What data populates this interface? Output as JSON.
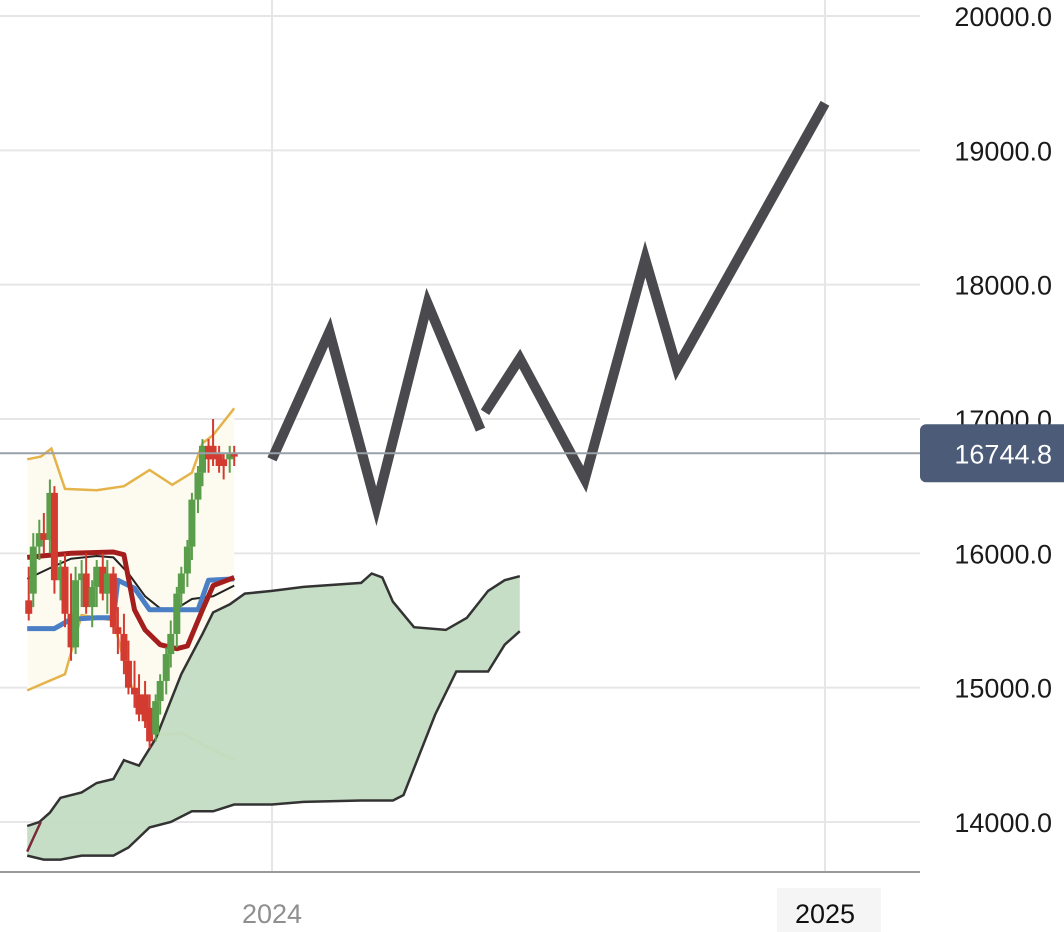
{
  "chart_data": {
    "type": "line",
    "title": "",
    "xlabel": "",
    "ylabel": "",
    "x_ticks": [
      {
        "label": "2024",
        "value": "2024-01-01",
        "emphasis": false
      },
      {
        "label": "2025",
        "value": "2025-01-01",
        "emphasis": true
      }
    ],
    "y_ticks": [
      "14000.0",
      "15000.0",
      "16000.0",
      "17000.0",
      "18000.0",
      "19000.0",
      "20000.0"
    ],
    "ylim": [
      13620,
      20120
    ],
    "xlim": [
      "2023-07-23",
      "2025-03-31"
    ],
    "grid": true,
    "last_price": {
      "label": "16744.8",
      "value": 16744.8
    },
    "colors": {
      "projection": "#4a4a4e",
      "up_candle": "#5a9e4b",
      "down_candle": "#d33a30",
      "bollinger": "#e4b34a",
      "bollinger_fill": "#fdfbf0",
      "base_line": "#a51e1e",
      "conversion_line": "#4a7fc6",
      "sma": "#222222",
      "cloud_fill": "#c4dcc3",
      "cloud_edge": "#333333",
      "price_tag": "#4c5b78",
      "grid": "#e6e6e6"
    },
    "projection_segments": [
      [
        [
          "2024-01-01",
          16700
        ],
        [
          "2024-02-08",
          17650
        ],
        [
          "2024-03-10",
          16350
        ],
        [
          "2024-04-13",
          17860
        ],
        [
          "2024-05-18",
          16920
        ]
      ],
      [
        [
          "2024-05-21",
          17050
        ],
        [
          "2024-06-13",
          17450
        ],
        [
          "2024-07-26",
          16550
        ],
        [
          "2024-09-04",
          18190
        ],
        [
          "2024-09-25",
          17380
        ],
        [
          "2025-01-01",
          19350
        ]
      ]
    ],
    "candles": [
      {
        "date": "2023-07-24",
        "open": 15650,
        "high": 15900,
        "low": 15500,
        "close": 15550
      },
      {
        "date": "2023-07-27",
        "open": 15700,
        "high": 16150,
        "low": 15600,
        "close": 16050
      },
      {
        "date": "2023-07-31",
        "open": 16050,
        "high": 16250,
        "low": 15950,
        "close": 16150
      },
      {
        "date": "2023-08-03",
        "open": 16150,
        "high": 16300,
        "low": 16000,
        "close": 16100
      },
      {
        "date": "2023-08-07",
        "open": 16100,
        "high": 16550,
        "low": 16000,
        "close": 16450
      },
      {
        "date": "2023-08-10",
        "open": 16450,
        "high": 16500,
        "low": 15700,
        "close": 15800
      },
      {
        "date": "2023-08-14",
        "open": 15800,
        "high": 15950,
        "low": 15650,
        "close": 15900
      },
      {
        "date": "2023-08-17",
        "open": 15900,
        "high": 16000,
        "low": 15450,
        "close": 15550
      },
      {
        "date": "2023-08-21",
        "open": 15550,
        "high": 15850,
        "low": 15200,
        "close": 15300
      },
      {
        "date": "2023-08-24",
        "open": 15300,
        "high": 15900,
        "low": 15250,
        "close": 15800
      },
      {
        "date": "2023-08-28",
        "open": 15800,
        "high": 15950,
        "low": 15600,
        "close": 15850
      },
      {
        "date": "2023-08-31",
        "open": 15850,
        "high": 16000,
        "low": 15550,
        "close": 15600
      },
      {
        "date": "2023-09-04",
        "open": 15600,
        "high": 15800,
        "low": 15450,
        "close": 15750
      },
      {
        "date": "2023-09-07",
        "open": 15750,
        "high": 15950,
        "low": 15600,
        "close": 15900
      },
      {
        "date": "2023-09-11",
        "open": 15900,
        "high": 16000,
        "low": 15650,
        "close": 15700
      },
      {
        "date": "2023-09-14",
        "open": 15700,
        "high": 15950,
        "low": 15550,
        "close": 15850
      },
      {
        "date": "2023-09-18",
        "open": 15850,
        "high": 15900,
        "low": 15400,
        "close": 15450
      },
      {
        "date": "2023-09-21",
        "open": 15450,
        "high": 15600,
        "low": 15250,
        "close": 15400
      },
      {
        "date": "2023-09-25",
        "open": 15400,
        "high": 15550,
        "low": 15100,
        "close": 15200
      },
      {
        "date": "2023-09-28",
        "open": 15200,
        "high": 15350,
        "low": 14950,
        "close": 15000
      },
      {
        "date": "2023-10-02",
        "open": 15000,
        "high": 15200,
        "low": 14850,
        "close": 14950
      },
      {
        "date": "2023-10-05",
        "open": 14950,
        "high": 15100,
        "low": 14750,
        "close": 14800
      },
      {
        "date": "2023-10-09",
        "open": 14950,
        "high": 15050,
        "low": 14700,
        "close": 14750
      },
      {
        "date": "2023-10-12",
        "open": 14850,
        "high": 14950,
        "low": 14550,
        "close": 14600
      },
      {
        "date": "2023-10-16",
        "open": 14650,
        "high": 14950,
        "low": 14600,
        "close": 14900
      },
      {
        "date": "2023-10-19",
        "open": 14900,
        "high": 15100,
        "low": 14800,
        "close": 15050
      },
      {
        "date": "2023-10-23",
        "open": 15050,
        "high": 15300,
        "low": 14950,
        "close": 15250
      },
      {
        "date": "2023-10-26",
        "open": 15250,
        "high": 15500,
        "low": 15150,
        "close": 15400
      },
      {
        "date": "2023-10-30",
        "open": 15400,
        "high": 15750,
        "low": 15300,
        "close": 15700
      },
      {
        "date": "2023-11-02",
        "open": 15700,
        "high": 15900,
        "low": 15600,
        "close": 15850
      },
      {
        "date": "2023-11-06",
        "open": 15850,
        "high": 16100,
        "low": 15750,
        "close": 16050
      },
      {
        "date": "2023-11-09",
        "open": 16050,
        "high": 16450,
        "low": 15950,
        "close": 16400
      },
      {
        "date": "2023-11-13",
        "open": 16400,
        "high": 16650,
        "low": 16300,
        "close": 16600
      },
      {
        "date": "2023-11-16",
        "open": 16600,
        "high": 16850,
        "low": 16500,
        "close": 16800
      },
      {
        "date": "2023-11-20",
        "open": 16800,
        "high": 16850,
        "low": 16600,
        "close": 16700
      },
      {
        "date": "2023-11-23",
        "open": 16800,
        "high": 17000,
        "low": 16650,
        "close": 16700
      },
      {
        "date": "2023-11-27",
        "open": 16750,
        "high": 16800,
        "low": 16600,
        "close": 16650
      },
      {
        "date": "2023-11-30",
        "open": 16700,
        "high": 16750,
        "low": 16550,
        "close": 16650
      },
      {
        "date": "2023-12-04",
        "open": 16700,
        "high": 16800,
        "low": 16600,
        "close": 16750
      },
      {
        "date": "2023-12-07",
        "open": 16750,
        "high": 16800,
        "low": 16650,
        "close": 16720
      }
    ],
    "bollinger_upper": [
      [
        "2023-07-23",
        16700
      ],
      [
        "2023-08-01",
        16720
      ],
      [
        "2023-08-08",
        16780
      ],
      [
        "2023-08-17",
        16480
      ],
      [
        "2023-09-07",
        16470
      ],
      [
        "2023-09-25",
        16500
      ],
      [
        "2023-10-12",
        16620
      ],
      [
        "2023-10-27",
        16510
      ],
      [
        "2023-11-09",
        16600
      ],
      [
        "2023-11-16",
        16820
      ],
      [
        "2023-11-23",
        16880
      ],
      [
        "2023-12-07",
        17080
      ]
    ],
    "bollinger_lower": [
      [
        "2023-07-23",
        14980
      ],
      [
        "2023-08-17",
        15100
      ],
      [
        "2023-08-28",
        15540
      ],
      [
        "2023-09-07",
        15520
      ],
      [
        "2023-09-18",
        15500
      ],
      [
        "2023-09-28",
        15070
      ],
      [
        "2023-10-09",
        14750
      ],
      [
        "2023-10-19",
        14650
      ],
      [
        "2023-11-02",
        14660
      ],
      [
        "2023-11-16",
        14580
      ],
      [
        "2023-12-07",
        14460
      ]
    ],
    "base_line": [
      [
        "2023-07-23",
        15970
      ],
      [
        "2023-08-10",
        15990
      ],
      [
        "2023-08-21",
        16000
      ],
      [
        "2023-09-18",
        16010
      ],
      [
        "2023-09-25",
        15990
      ],
      [
        "2023-10-02",
        15580
      ],
      [
        "2023-10-09",
        15430
      ],
      [
        "2023-10-19",
        15320
      ],
      [
        "2023-10-30",
        15290
      ],
      [
        "2023-11-06",
        15310
      ],
      [
        "2023-11-16",
        15580
      ],
      [
        "2023-11-23",
        15760
      ],
      [
        "2023-12-07",
        15820
      ]
    ],
    "conversion_line": [
      [
        "2023-07-23",
        15440
      ],
      [
        "2023-08-10",
        15440
      ],
      [
        "2023-08-21",
        15510
      ],
      [
        "2023-09-07",
        15520
      ],
      [
        "2023-09-18",
        15520
      ],
      [
        "2023-09-21",
        15800
      ],
      [
        "2023-10-02",
        15740
      ],
      [
        "2023-10-12",
        15580
      ],
      [
        "2023-11-13",
        15580
      ],
      [
        "2023-11-20",
        15800
      ],
      [
        "2023-12-07",
        15810
      ]
    ],
    "sma": [
      [
        "2023-07-23",
        15810
      ],
      [
        "2023-08-07",
        15890
      ],
      [
        "2023-08-21",
        15960
      ],
      [
        "2023-09-07",
        15980
      ],
      [
        "2023-09-18",
        15970
      ],
      [
        "2023-09-28",
        15850
      ],
      [
        "2023-10-09",
        15680
      ],
      [
        "2023-10-19",
        15590
      ],
      [
        "2023-10-30",
        15590
      ],
      [
        "2023-11-09",
        15660
      ],
      [
        "2023-11-23",
        15680
      ],
      [
        "2023-12-07",
        15760
      ]
    ],
    "lagging_line": [
      [
        "2023-07-23",
        13780
      ],
      [
        "2023-07-27",
        13880
      ],
      [
        "2023-08-01",
        14000
      ]
    ],
    "cloud_upper": [
      [
        "2023-07-23",
        13970
      ],
      [
        "2023-07-31",
        14000
      ],
      [
        "2023-08-07",
        14070
      ],
      [
        "2023-08-14",
        14180
      ],
      [
        "2023-08-28",
        14220
      ],
      [
        "2023-09-07",
        14290
      ],
      [
        "2023-09-18",
        14320
      ],
      [
        "2023-09-25",
        14460
      ],
      [
        "2023-10-05",
        14420
      ],
      [
        "2023-10-16",
        14620
      ],
      [
        "2023-11-02",
        15100
      ],
      [
        "2023-11-16",
        15400
      ],
      [
        "2023-11-23",
        15560
      ],
      [
        "2023-12-04",
        15620
      ],
      [
        "2023-12-14",
        15700
      ],
      [
        "2024-01-01",
        15720
      ],
      [
        "2024-01-22",
        15750
      ],
      [
        "2024-02-29",
        15780
      ],
      [
        "2024-03-07",
        15850
      ],
      [
        "2024-03-14",
        15820
      ],
      [
        "2024-03-21",
        15640
      ],
      [
        "2024-04-04",
        15450
      ],
      [
        "2024-04-25",
        15430
      ],
      [
        "2024-05-09",
        15520
      ],
      [
        "2024-05-23",
        15720
      ],
      [
        "2024-06-03",
        15800
      ],
      [
        "2024-06-13",
        15830
      ]
    ],
    "cloud_lower": [
      [
        "2023-07-23",
        13750
      ],
      [
        "2023-08-03",
        13720
      ],
      [
        "2023-08-14",
        13720
      ],
      [
        "2023-08-28",
        13750
      ],
      [
        "2023-09-18",
        13750
      ],
      [
        "2023-09-28",
        13810
      ],
      [
        "2023-10-12",
        13960
      ],
      [
        "2023-10-26",
        14000
      ],
      [
        "2023-11-09",
        14080
      ],
      [
        "2023-11-23",
        14080
      ],
      [
        "2023-12-07",
        14130
      ],
      [
        "2024-01-01",
        14130
      ],
      [
        "2024-01-22",
        14150
      ],
      [
        "2024-02-29",
        14160
      ],
      [
        "2024-03-21",
        14160
      ],
      [
        "2024-03-28",
        14200
      ],
      [
        "2024-04-04",
        14400
      ],
      [
        "2024-04-18",
        14800
      ],
      [
        "2024-05-02",
        15120
      ],
      [
        "2024-05-23",
        15120
      ],
      [
        "2024-06-03",
        15320
      ],
      [
        "2024-06-13",
        15420
      ]
    ]
  }
}
